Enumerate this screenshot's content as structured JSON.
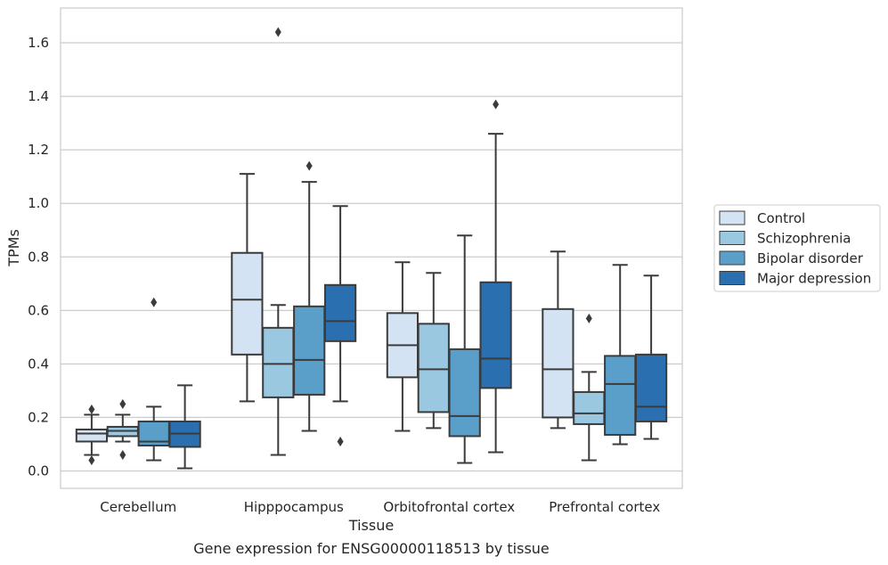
{
  "caption": "Gene expression for ENSG00000118513 by tissue",
  "chart_data": {
    "type": "box",
    "xlabel": "Tissue",
    "ylabel": "TPMs",
    "ylim": [
      -0.065,
      1.73
    ],
    "yticks": [
      "0.0",
      "0.2",
      "0.4",
      "0.6",
      "0.8",
      "1.0",
      "1.2",
      "1.4",
      "1.6"
    ],
    "grid": "horizontal",
    "legend_position": "right",
    "categories": [
      "Cerebellum",
      "Hipppocampus",
      "Orbitofrontal cortex",
      "Prefrontal cortex"
    ],
    "series": [
      {
        "name": "Control",
        "color": "#d3e3f3",
        "boxes": [
          {
            "whisker_low": 0.06,
            "q1": 0.11,
            "median": 0.14,
            "q3": 0.155,
            "whisker_high": 0.21,
            "outliers": [
              0.04,
              0.23
            ]
          },
          {
            "whisker_low": 0.26,
            "q1": 0.435,
            "median": 0.64,
            "q3": 0.815,
            "whisker_high": 1.11,
            "outliers": []
          },
          {
            "whisker_low": 0.15,
            "q1": 0.35,
            "median": 0.47,
            "q3": 0.59,
            "whisker_high": 0.78,
            "outliers": []
          },
          {
            "whisker_low": 0.16,
            "q1": 0.2,
            "median": 0.38,
            "q3": 0.605,
            "whisker_high": 0.82,
            "outliers": []
          }
        ]
      },
      {
        "name": "Schizophrenia",
        "color": "#9ac8e0",
        "boxes": [
          {
            "whisker_low": 0.11,
            "q1": 0.13,
            "median": 0.15,
            "q3": 0.165,
            "whisker_high": 0.21,
            "outliers": [
              0.06,
              0.25
            ]
          },
          {
            "whisker_low": 0.06,
            "q1": 0.275,
            "median": 0.4,
            "q3": 0.535,
            "whisker_high": 0.62,
            "outliers": [
              1.64
            ]
          },
          {
            "whisker_low": 0.16,
            "q1": 0.22,
            "median": 0.38,
            "q3": 0.55,
            "whisker_high": 0.74,
            "outliers": []
          },
          {
            "whisker_low": 0.04,
            "q1": 0.175,
            "median": 0.215,
            "q3": 0.295,
            "whisker_high": 0.37,
            "outliers": [
              0.57
            ]
          }
        ]
      },
      {
        "name": "Bipolar disorder",
        "color": "#5a9fca",
        "boxes": [
          {
            "whisker_low": 0.04,
            "q1": 0.095,
            "median": 0.11,
            "q3": 0.185,
            "whisker_high": 0.24,
            "outliers": [
              0.63
            ]
          },
          {
            "whisker_low": 0.15,
            "q1": 0.285,
            "median": 0.415,
            "q3": 0.615,
            "whisker_high": 1.08,
            "outliers": [
              1.14
            ]
          },
          {
            "whisker_low": 0.03,
            "q1": 0.13,
            "median": 0.205,
            "q3": 0.455,
            "whisker_high": 0.88,
            "outliers": []
          },
          {
            "whisker_low": 0.1,
            "q1": 0.135,
            "median": 0.325,
            "q3": 0.43,
            "whisker_high": 0.77,
            "outliers": []
          }
        ]
      },
      {
        "name": "Major depression",
        "color": "#2a6fb0",
        "boxes": [
          {
            "whisker_low": 0.01,
            "q1": 0.09,
            "median": 0.14,
            "q3": 0.185,
            "whisker_high": 0.32,
            "outliers": []
          },
          {
            "whisker_low": 0.26,
            "q1": 0.485,
            "median": 0.56,
            "q3": 0.695,
            "whisker_high": 0.99,
            "outliers": [
              0.11
            ]
          },
          {
            "whisker_low": 0.07,
            "q1": 0.31,
            "median": 0.42,
            "q3": 0.705,
            "whisker_high": 1.26,
            "outliers": [
              1.37
            ]
          },
          {
            "whisker_low": 0.12,
            "q1": 0.185,
            "median": 0.24,
            "q3": 0.435,
            "whisker_high": 0.73,
            "outliers": []
          }
        ]
      }
    ]
  }
}
